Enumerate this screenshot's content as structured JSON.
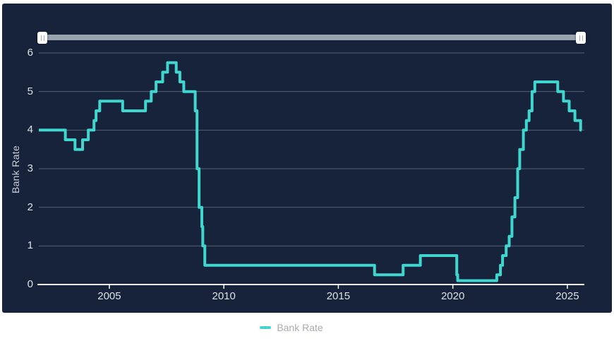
{
  "panel": {
    "background": "#16233B"
  },
  "slider": {
    "track_color": "#99A3AD",
    "handle_color": "#FFFFFF"
  },
  "legend": {
    "label": "Bank Rate"
  },
  "chart_data": {
    "type": "line",
    "title": "",
    "xlabel": "",
    "ylabel": "Bank Rate",
    "line_color": "#3FD6D0",
    "grid_color": "rgba(255,255,255,0.28)",
    "axis_line_color": "#FFFFFF",
    "xlim": [
      2001.92,
      2025.62
    ],
    "ylim": [
      0,
      6
    ],
    "grid": true,
    "legend_position": "bottom",
    "x_ticks": [
      {
        "value": 2005,
        "label": "2005"
      },
      {
        "value": 2010,
        "label": "2010"
      },
      {
        "value": 2015,
        "label": "2015"
      },
      {
        "value": 2020,
        "label": "2020"
      },
      {
        "value": 2025,
        "label": "2025"
      }
    ],
    "y_ticks": [
      {
        "value": 0,
        "label": "0"
      },
      {
        "value": 1,
        "label": "1"
      },
      {
        "value": 2,
        "label": "2"
      },
      {
        "value": 3,
        "label": "3"
      },
      {
        "value": 4,
        "label": "4"
      },
      {
        "value": 5,
        "label": "5"
      },
      {
        "value": 6,
        "label": "6"
      }
    ],
    "series": [
      {
        "name": "Bank Rate",
        "step": true,
        "points": [
          [
            2001.92,
            4.0
          ],
          [
            2003.08,
            3.75
          ],
          [
            2003.5,
            3.5
          ],
          [
            2003.83,
            3.75
          ],
          [
            2004.08,
            4.0
          ],
          [
            2004.33,
            4.25
          ],
          [
            2004.42,
            4.5
          ],
          [
            2004.58,
            4.75
          ],
          [
            2005.58,
            4.5
          ],
          [
            2006.58,
            4.75
          ],
          [
            2006.83,
            5.0
          ],
          [
            2007.04,
            5.25
          ],
          [
            2007.33,
            5.5
          ],
          [
            2007.54,
            5.75
          ],
          [
            2007.92,
            5.5
          ],
          [
            2008.08,
            5.25
          ],
          [
            2008.25,
            5.0
          ],
          [
            2008.75,
            4.5
          ],
          [
            2008.83,
            3.0
          ],
          [
            2008.92,
            2.0
          ],
          [
            2009.04,
            1.5
          ],
          [
            2009.08,
            1.0
          ],
          [
            2009.17,
            0.5
          ],
          [
            2016.58,
            0.25
          ],
          [
            2017.83,
            0.5
          ],
          [
            2018.58,
            0.75
          ],
          [
            2020.17,
            0.25
          ],
          [
            2020.21,
            0.1
          ],
          [
            2021.92,
            0.25
          ],
          [
            2022.08,
            0.5
          ],
          [
            2022.17,
            0.75
          ],
          [
            2022.33,
            1.0
          ],
          [
            2022.46,
            1.25
          ],
          [
            2022.58,
            1.75
          ],
          [
            2022.71,
            2.25
          ],
          [
            2022.83,
            3.0
          ],
          [
            2022.92,
            3.5
          ],
          [
            2023.08,
            4.0
          ],
          [
            2023.21,
            4.25
          ],
          [
            2023.33,
            4.5
          ],
          [
            2023.46,
            5.0
          ],
          [
            2023.58,
            5.25
          ],
          [
            2024.58,
            5.0
          ],
          [
            2024.83,
            4.75
          ],
          [
            2025.08,
            4.5
          ],
          [
            2025.33,
            4.25
          ],
          [
            2025.58,
            4.0
          ]
        ]
      }
    ]
  }
}
